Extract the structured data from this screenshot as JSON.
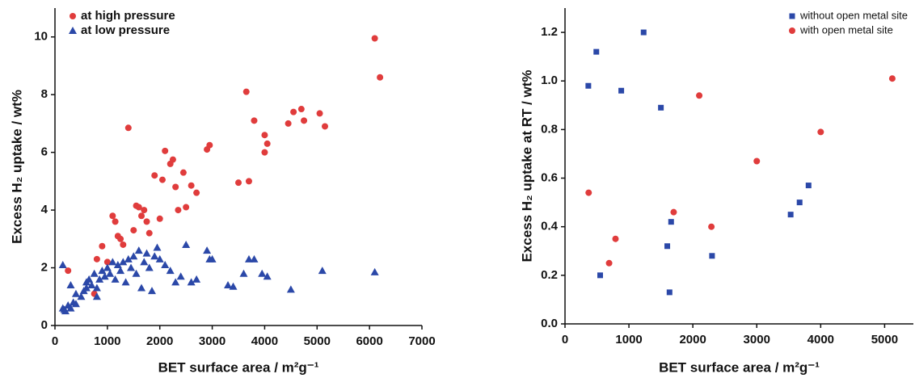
{
  "chart_data": [
    {
      "type": "scatter",
      "x_label": "BET surface area / m²g⁻¹",
      "y_label": "Excess H₂ uptake / wt%",
      "xlim": [
        0,
        7000
      ],
      "xticks": [
        0,
        1000,
        2000,
        3000,
        4000,
        5000,
        6000,
        7000
      ],
      "ylim": [
        0,
        11
      ],
      "yticks": [
        0,
        2,
        4,
        6,
        8,
        10
      ],
      "legend": "upper-left",
      "series": [
        {
          "name": "at high pressure",
          "color": "#e03c3c",
          "marker": "circle",
          "x": [
            250,
            750,
            800,
            900,
            1000,
            1100,
            1150,
            1200,
            1250,
            1300,
            1400,
            1500,
            1550,
            1600,
            1650,
            1700,
            1750,
            1800,
            1900,
            2000,
            2050,
            2100,
            2200,
            2250,
            2300,
            2350,
            2450,
            2500,
            2600,
            2700,
            2900,
            2950,
            3500,
            3650,
            3700,
            3800,
            4000,
            4000,
            4050,
            4450,
            4550,
            4700,
            4750,
            5050,
            5150,
            6100,
            6200
          ],
          "values": [
            1.9,
            1.1,
            2.3,
            2.75,
            2.2,
            3.8,
            3.6,
            3.1,
            3.0,
            2.8,
            6.85,
            3.3,
            4.15,
            4.1,
            3.8,
            4.0,
            3.6,
            3.2,
            5.2,
            3.7,
            5.05,
            6.05,
            5.6,
            5.75,
            4.8,
            4.0,
            5.3,
            4.1,
            4.85,
            4.6,
            6.1,
            6.25,
            4.95,
            8.1,
            5.0,
            7.1,
            6.6,
            6.0,
            6.3,
            7.0,
            7.4,
            7.5,
            7.1,
            7.35,
            6.9,
            9.95,
            8.6
          ]
        },
        {
          "name": "at low pressure",
          "color": "#2b48a8",
          "marker": "triangle",
          "x": [
            150,
            180,
            200,
            150,
            250,
            300,
            300,
            350,
            400,
            400,
            500,
            550,
            600,
            600,
            650,
            700,
            750,
            800,
            800,
            850,
            900,
            950,
            1000,
            1050,
            1100,
            1150,
            1200,
            1250,
            1300,
            1350,
            1400,
            1450,
            1500,
            1550,
            1600,
            1650,
            1700,
            1750,
            1800,
            1850,
            1900,
            1950,
            2000,
            2100,
            2200,
            2300,
            2400,
            2500,
            2600,
            2700,
            2900,
            2950,
            3000,
            3300,
            3400,
            3600,
            3700,
            3800,
            3950,
            4050,
            4500,
            5100,
            6100
          ],
          "values": [
            0.6,
            0.55,
            0.5,
            2.1,
            0.7,
            1.4,
            0.6,
            0.8,
            0.75,
            1.1,
            1.0,
            1.2,
            1.5,
            1.3,
            1.6,
            1.4,
            1.8,
            1.0,
            1.3,
            1.6,
            1.9,
            1.7,
            2.0,
            1.8,
            2.2,
            1.6,
            2.1,
            1.9,
            2.2,
            1.5,
            2.3,
            2.0,
            2.4,
            1.8,
            2.6,
            1.3,
            2.2,
            2.5,
            2.0,
            1.2,
            2.4,
            2.7,
            2.3,
            2.1,
            1.9,
            1.5,
            1.7,
            2.8,
            1.5,
            1.6,
            2.6,
            2.3,
            2.3,
            1.4,
            1.35,
            1.8,
            2.3,
            2.3,
            1.8,
            1.7,
            1.25,
            1.9,
            1.85
          ]
        }
      ]
    },
    {
      "type": "scatter",
      "x_label": "BET surface area / m²g⁻¹",
      "y_label": "Excess H₂ uptake at RT / wt%",
      "xlim": [
        0,
        5450
      ],
      "xticks": [
        0,
        1000,
        2000,
        3000,
        4000,
        5000
      ],
      "ylim": [
        0,
        1.3
      ],
      "yticks": [
        {
          "value": 0,
          "label": "0.0"
        },
        0.2,
        0.4,
        0.6,
        0.8,
        {
          "value": 1,
          "label": "1.0"
        },
        1.2
      ],
      "legend": "upper-right",
      "series": [
        {
          "name": "without open metal site",
          "color": "#2b48a8",
          "marker": "square",
          "x": [
            365,
            490,
            880,
            1230,
            1500,
            550,
            1660,
            1600,
            1635,
            2300,
            3530,
            3670,
            3810
          ],
          "values": [
            0.98,
            1.12,
            0.96,
            1.2,
            0.89,
            0.2,
            0.42,
            0.32,
            0.13,
            0.28,
            0.45,
            0.5,
            0.57
          ]
        },
        {
          "name": "with open metal site",
          "color": "#e03c3c",
          "marker": "circle",
          "x": [
            370,
            790,
            690,
            1700,
            2290,
            2100,
            3000,
            4000,
            5120
          ],
          "values": [
            0.54,
            0.35,
            0.25,
            0.46,
            0.4,
            0.94,
            0.67,
            0.79,
            1.01
          ]
        }
      ]
    }
  ]
}
